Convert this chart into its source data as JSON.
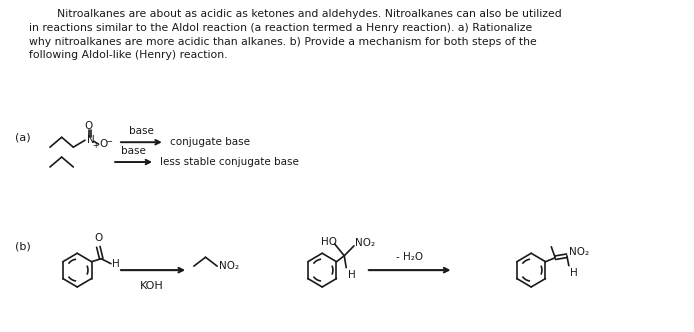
{
  "background_color": "#ffffff",
  "figsize": [
    6.94,
    3.32
  ],
  "dpi": 100,
  "paragraph_text": "        Nitroalkanes are about as acidic as ketones and aldehydes. Nitroalkanes can also be utilized\nin reactions similar to the Aldol reaction (a reaction termed a Henry reaction). a) Rationalize\nwhy nitroalkanes are more acidic than alkanes. b) Provide a mechanism for both steps of the\nfollowing Aldol-like (Henry) reaction.",
  "label_a": "(a)",
  "label_b": "(b)",
  "base_label": "base",
  "conjugate_base_label": "conjugate base",
  "less_stable_label": "less stable conjugate base",
  "koh_label": "KOH",
  "minus_h2o_label": "- H₂O",
  "no2_label": "NO₂",
  "ho_label": "HO",
  "h_label": "H",
  "font_color": "#1a1a1a",
  "line_color": "#1a1a1a",
  "para_fontsize": 7.8,
  "label_fontsize": 8.0,
  "struct_fontsize": 7.5,
  "lw": 1.2
}
